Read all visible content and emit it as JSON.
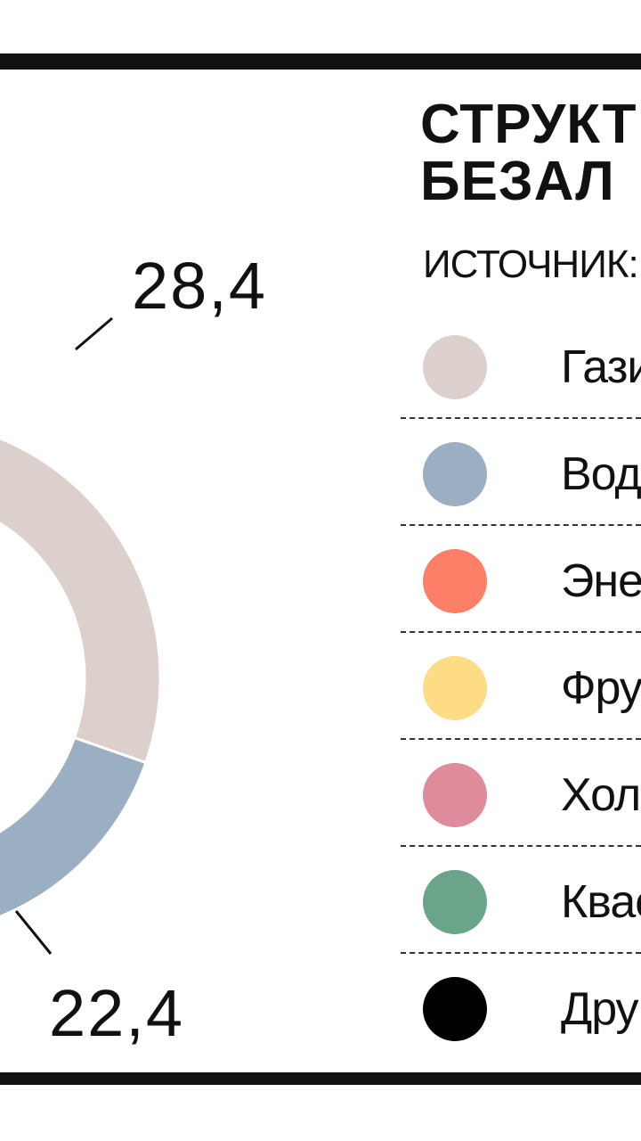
{
  "title_line1": "СТРУКТ",
  "title_line2": "БЕЗАЛ",
  "source": "ИСТОЧНИК:",
  "chart_data": {
    "type": "pie",
    "style": "donut",
    "slices": [
      {
        "label": "Гази",
        "value": 28.4,
        "value_label": "28,4",
        "color": "#dcd0cd"
      },
      {
        "label": "Вода",
        "value": 22.4,
        "value_label": "22,4",
        "color": "#9aafc1"
      },
      {
        "label": "Эне",
        "color": "#fd7f67"
      },
      {
        "label": "Фру",
        "color": "#fddc85"
      },
      {
        "label": "Холо",
        "color": "#de8b9c"
      },
      {
        "label": "Квас",
        "color": "#6aa58a"
      },
      {
        "label": "Дру",
        "color": "#000000"
      }
    ]
  }
}
